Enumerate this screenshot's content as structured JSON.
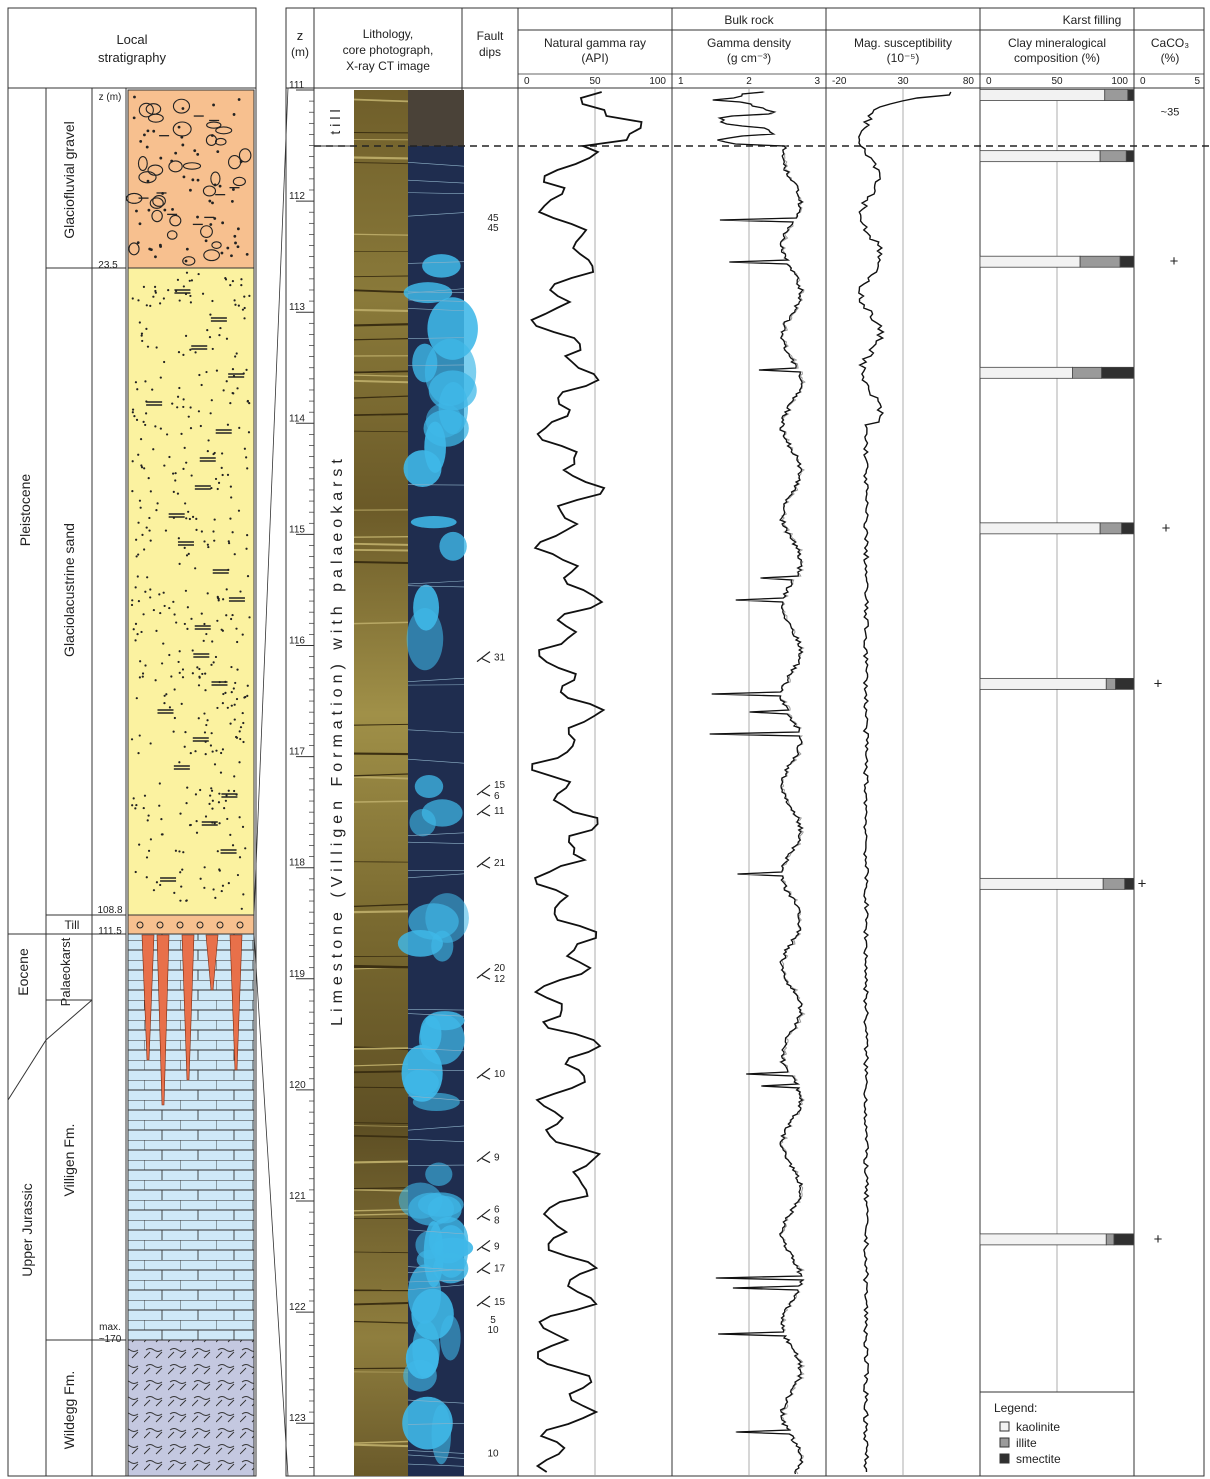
{
  "header": {
    "local": "Local",
    "stratigraphy": "stratigraphy",
    "z": "z",
    "z_unit": "(m)",
    "lith1": "Lithology,",
    "lith2": "core photograph,",
    "lith3": "X-ray CT image",
    "fault1": "Fault",
    "fault2": "dips",
    "bulk": "Bulk rock",
    "karst": "Karst filling",
    "gr1": "Natural gamma ray",
    "gr2": "(API)",
    "gd1": "Gamma density",
    "gd2": "(g cm⁻³)",
    "ms1": "Mag. susceptibility",
    "ms2": "(10⁻⁵)",
    "clay1": "Clay mineralogical",
    "clay2": "composition (%)",
    "caco1": "CaCO₃",
    "caco2": "(%)"
  },
  "axes": {
    "gr_ticks": [
      "0",
      "50",
      "100"
    ],
    "gd_ticks": [
      "1",
      "2",
      "3"
    ],
    "ms_ticks": [
      "-20",
      "30",
      "80"
    ],
    "clay_ticks": [
      "0",
      "50",
      "100"
    ],
    "caco_ticks": [
      "0",
      "5"
    ]
  },
  "stratigraphy": {
    "eras": [
      "Pleistocene",
      "Eocene",
      "Upper Jurassic"
    ],
    "units": [
      "Glaciofluvial gravel",
      "Glaciolacustrine sand",
      "Till",
      "Palaeokarst",
      "Villigen Fm.",
      "Wildegg Fm."
    ],
    "depth_labels": [
      "z (m)",
      "23.5",
      "108.8",
      "111.5",
      "max.",
      "~170"
    ]
  },
  "core": {
    "depth_ticks": [
      "111",
      "112",
      "113",
      "114",
      "115",
      "116",
      "117",
      "118",
      "119",
      "120",
      "121",
      "122",
      "123"
    ],
    "till_label": "till",
    "formation_label": "Limestone (Villigen Formation) with palaeokarst"
  },
  "fault_dips": [
    {
      "depth": 112.18,
      "labels": [
        "45",
        "45"
      ],
      "symbol": false
    },
    {
      "depth": 116.1,
      "labels": [
        "31"
      ],
      "symbol": true
    },
    {
      "depth": 117.3,
      "labels": [
        "15",
        "6"
      ],
      "symbol": true
    },
    {
      "depth": 117.48,
      "labels": [
        "11"
      ],
      "symbol": true
    },
    {
      "depth": 117.95,
      "labels": [
        "21"
      ],
      "symbol": true
    },
    {
      "depth": 118.95,
      "labels": [
        "20",
        "12"
      ],
      "symbol": true
    },
    {
      "depth": 119.85,
      "labels": [
        "10"
      ],
      "symbol": true
    },
    {
      "depth": 120.6,
      "labels": [
        "9"
      ],
      "symbol": true
    },
    {
      "depth": 121.12,
      "labels": [
        "6",
        "8"
      ],
      "symbol": true
    },
    {
      "depth": 121.4,
      "labels": [
        "9"
      ],
      "symbol": true
    },
    {
      "depth": 121.6,
      "labels": [
        "17"
      ],
      "symbol": true
    },
    {
      "depth": 121.9,
      "labels": [
        "15"
      ],
      "symbol": true
    },
    {
      "depth": 122.1,
      "labels": [
        "5",
        "10"
      ],
      "symbol": false
    },
    {
      "depth": 123.3,
      "labels": [
        "10"
      ],
      "symbol": false
    }
  ],
  "karst_samples": [
    {
      "depth": 111.05,
      "kaolinite": 81,
      "illite": 15,
      "smectite": 4,
      "caco3": "~35"
    },
    {
      "depth": 111.6,
      "kaolinite": 78,
      "illite": 17,
      "smectite": 5,
      "caco3": ""
    },
    {
      "depth": 112.55,
      "kaolinite": 65,
      "illite": 26,
      "smectite": 9,
      "caco3": "+"
    },
    {
      "depth": 113.55,
      "kaolinite": 60,
      "illite": 19,
      "smectite": 21,
      "caco3": ""
    },
    {
      "depth": 114.95,
      "kaolinite": 78,
      "illite": 14,
      "smectite": 8,
      "caco3": "+"
    },
    {
      "depth": 116.35,
      "kaolinite": 82,
      "illite": 6,
      "smectite": 12,
      "caco3": "+"
    },
    {
      "depth": 118.15,
      "kaolinite": 80,
      "illite": 14,
      "smectite": 6,
      "caco3": "+"
    },
    {
      "depth": 121.35,
      "kaolinite": 82,
      "illite": 5,
      "smectite": 13,
      "caco3": "+"
    }
  ],
  "legend": {
    "title": "Legend:",
    "items": [
      {
        "label": "kaolinite",
        "color": "#f2f2f2"
      },
      {
        "label": "illite",
        "color": "#9a9a9a"
      },
      {
        "label": "smectite",
        "color": "#303030"
      }
    ]
  },
  "colors": {
    "gravel": "#f7c08f",
    "sand": "#fbf2a0",
    "limestone": "#cfe9f7",
    "marl": "#c4c8e0",
    "karst_fill": "#e8704a",
    "core_photo": "#8c7a3c",
    "ct_image": "#1f2d4f",
    "ct_bright": "#3fb8e8"
  }
}
